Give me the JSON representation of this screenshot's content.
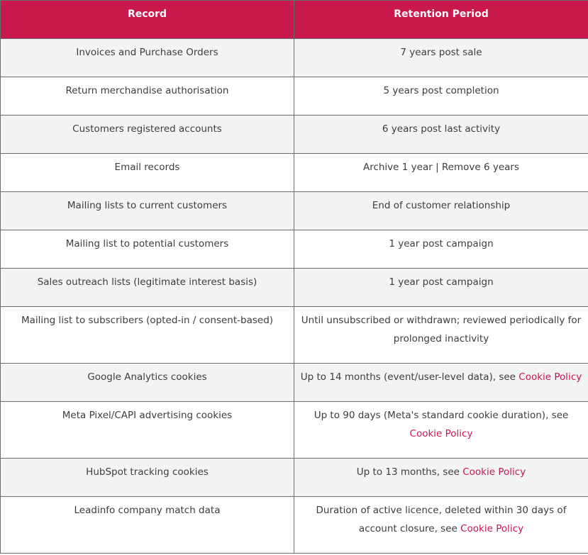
{
  "table": {
    "headers": [
      "Record",
      "Retention Period"
    ],
    "rows": [
      {
        "record": "Invoices and Purchase Orders",
        "period": "7 years post sale",
        "link": ""
      },
      {
        "record": "Return merchandise authorisation",
        "period": "5 years post completion",
        "link": ""
      },
      {
        "record": "Customers registered accounts",
        "period": "6 years post last activity",
        "link": ""
      },
      {
        "record": "Email records",
        "period": "Archive 1 year | Remove 6 years",
        "link": ""
      },
      {
        "record": "Mailing lists to current customers",
        "period": "End of customer relationship",
        "link": ""
      },
      {
        "record": "Mailing list to potential customers",
        "period": "1 year post campaign",
        "link": ""
      },
      {
        "record": "Sales outreach lists (legitimate interest basis)",
        "period": "1 year post campaign",
        "link": ""
      },
      {
        "record": "Mailing list to subscribers (opted-in / consent-based)",
        "period": "Until unsubscribed or withdrawn; reviewed periodically for prolonged inactivity",
        "link": ""
      },
      {
        "record": "Google Analytics cookies",
        "period": "Up to 14 months (event/user-level data), see ",
        "link": "Cookie Policy"
      },
      {
        "record": "Meta Pixel/CAPI advertising cookies",
        "period": "Up to 90 days (Meta's standard cookie duration), see ",
        "link": "Cookie Policy"
      },
      {
        "record": "HubSpot tracking cookies",
        "period": "Up to 13 months, see ",
        "link": "Cookie Policy"
      },
      {
        "record": "Leadinfo company match data",
        "period": "Duration of active licence, deleted within 30 days of account closure, see ",
        "link": "Cookie Policy"
      }
    ]
  },
  "colors": {
    "header_bg": "#c8184c",
    "link": "#c8184c",
    "stripe": "#f2f3f5"
  }
}
